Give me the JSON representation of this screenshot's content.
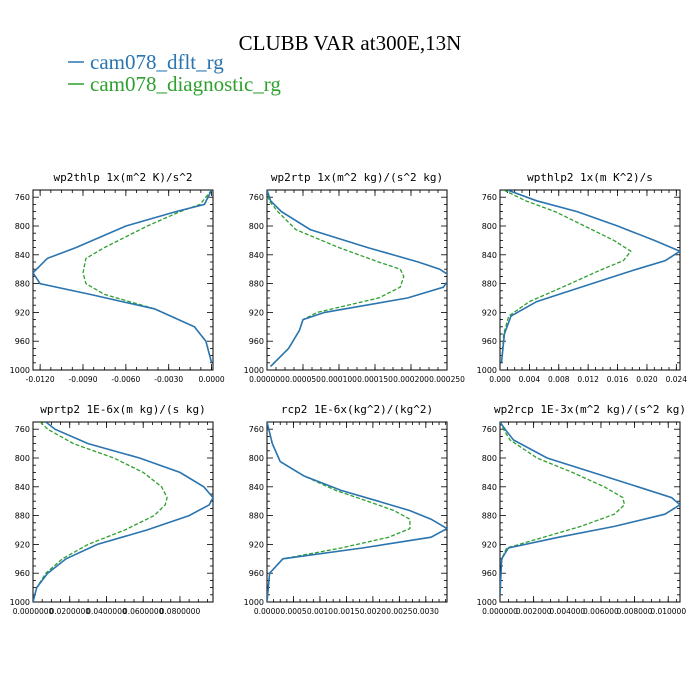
{
  "title": "CLUBB VAR at300E,13N",
  "legend": [
    {
      "label": "cam078_dflt_rg",
      "color": "#2a74b0",
      "style": "solid"
    },
    {
      "label": "cam078_diagnostic_rg",
      "color": "#2ea02e",
      "style": "dashed"
    }
  ],
  "chart_data": [
    {
      "type": "line",
      "title": "wp2thlp   1x(m^2 K)/s^2",
      "ylim": [
        1000,
        750
      ],
      "xlim": [
        -0.0125,
        0.0001
      ],
      "yticks": [
        "760",
        "800",
        "840",
        "880",
        "920",
        "960",
        "1000"
      ],
      "xticks": [
        "-0.0120",
        "-0.0090",
        "-0.0060",
        "-0.0030",
        "0.0000"
      ],
      "series": [
        {
          "x": [
            0.0,
            -0.0005,
            -0.0025,
            -0.006,
            -0.0095,
            -0.0115,
            -0.0125,
            -0.012,
            -0.0085,
            -0.004,
            -0.0012,
            -0.0004,
            0.0
          ],
          "y": [
            750,
            770,
            780,
            800,
            830,
            845,
            865,
            880,
            895,
            915,
            940,
            960,
            990
          ]
        },
        {
          "x": [
            0.0,
            -0.0008,
            -0.0022,
            -0.0045,
            -0.0075,
            -0.0088,
            -0.009,
            -0.0088,
            -0.0075,
            -0.004,
            -0.0012,
            -0.0004,
            0.0
          ],
          "y": [
            750,
            770,
            780,
            800,
            830,
            845,
            865,
            880,
            895,
            915,
            940,
            960,
            990
          ]
        }
      ]
    },
    {
      "type": "line",
      "title": "wp2rtp   1x(m^2 kg)/(s^2 kg)",
      "ylim": [
        1000,
        750
      ],
      "xlim": [
        0,
        0.00025
      ],
      "yticks": [
        "760",
        "800",
        "840",
        "880",
        "920",
        "960",
        "1000"
      ],
      "xticks": [
        "0.000000",
        "0.000050",
        "0.000100",
        "0.000150",
        "0.000200",
        "0.000250"
      ],
      "series": [
        {
          "x": [
            0.0,
            5e-06,
            2e-05,
            6e-05,
            0.00014,
            0.00021,
            0.00024,
            0.000255,
            0.000245,
            0.000195,
            8e-05,
            5e-05,
            4.5e-05,
            3e-05,
            5e-06
          ],
          "y": [
            750,
            765,
            780,
            805,
            830,
            850,
            860,
            870,
            885,
            900,
            920,
            930,
            945,
            970,
            995
          ]
        },
        {
          "x": [
            0.0,
            3e-06,
            1.5e-05,
            4e-05,
            0.0001,
            0.000155,
            0.000185,
            0.00019,
            0.000185,
            0.000155,
            7e-05,
            5e-05,
            4.5e-05,
            3e-05,
            5e-06
          ],
          "y": [
            750,
            765,
            780,
            805,
            830,
            850,
            860,
            870,
            885,
            900,
            920,
            930,
            945,
            970,
            995
          ]
        }
      ]
    },
    {
      "type": "line",
      "title": "wpthlp2   1x(m K^2)/s",
      "ylim": [
        1000,
        750
      ],
      "xlim": [
        0,
        0.0245
      ],
      "yticks": [
        "760",
        "800",
        "840",
        "880",
        "920",
        "960",
        "1000"
      ],
      "xticks": [
        "0.000",
        "0.004",
        "0.008",
        "0.012",
        "0.016",
        "0.020",
        "0.024"
      ],
      "series": [
        {
          "x": [
            0.001,
            0.005,
            0.0105,
            0.016,
            0.021,
            0.0245,
            0.0225,
            0.018,
            0.011,
            0.005,
            0.0015,
            0.0006,
            0.0002
          ],
          "y": [
            750,
            765,
            780,
            800,
            820,
            835,
            848,
            862,
            885,
            905,
            925,
            950,
            990
          ]
        },
        {
          "x": [
            0.0005,
            0.0035,
            0.0075,
            0.0115,
            0.0155,
            0.0178,
            0.0168,
            0.0135,
            0.0085,
            0.004,
            0.0012,
            0.0005,
            0.0002
          ],
          "y": [
            750,
            765,
            780,
            800,
            820,
            835,
            848,
            862,
            885,
            905,
            925,
            950,
            990
          ]
        }
      ]
    },
    {
      "type": "line",
      "title": "wprtp2   1E-6x(m kg)/(s kg)",
      "ylim": [
        1000,
        750
      ],
      "xlim": [
        0,
        0.098
      ],
      "yticks": [
        "760",
        "800",
        "840",
        "880",
        "920",
        "960",
        "1000"
      ],
      "xticks": [
        "0.0000000",
        "0.0200000",
        "0.0400000",
        "0.0600000",
        "0.0800000"
      ],
      "series": [
        {
          "x": [
            0.007,
            0.012,
            0.03,
            0.058,
            0.08,
            0.093,
            0.098,
            0.096,
            0.085,
            0.062,
            0.035,
            0.018,
            0.008,
            0.002,
            0.0
          ],
          "y": [
            750,
            760,
            780,
            800,
            820,
            840,
            855,
            865,
            880,
            900,
            920,
            940,
            960,
            980,
            1000
          ]
        },
        {
          "x": [
            0.004,
            0.008,
            0.022,
            0.044,
            0.06,
            0.07,
            0.073,
            0.072,
            0.066,
            0.05,
            0.03,
            0.016,
            0.007,
            0.002,
            0.0
          ],
          "y": [
            750,
            760,
            780,
            800,
            820,
            840,
            855,
            865,
            880,
            900,
            920,
            940,
            960,
            980,
            1000
          ]
        }
      ]
    },
    {
      "type": "line",
      "title": "rcp2   1E-6x(kg^2)/(kg^2)",
      "ylim": [
        1000,
        750
      ],
      "xlim": [
        0,
        0.0034
      ],
      "yticks": [
        "760",
        "800",
        "840",
        "880",
        "920",
        "960",
        "1000"
      ],
      "xticks": [
        "0.0000",
        "0.0005",
        "0.0010",
        "0.0015",
        "0.0020",
        "0.0025",
        "0.0030"
      ],
      "series": [
        {
          "x": [
            0.0,
            0.0001,
            0.00025,
            0.0007,
            0.0014,
            0.0021,
            0.0027,
            0.0031,
            0.0034,
            0.0031,
            0.0018,
            0.0003,
            5e-05,
            0.0
          ],
          "y": [
            750,
            780,
            805,
            825,
            845,
            860,
            873,
            885,
            898,
            910,
            925,
            940,
            960,
            1000
          ]
        },
        {
          "x": [
            0.0,
            0.0001,
            0.00025,
            0.0007,
            0.0013,
            0.0019,
            0.0024,
            0.0027,
            0.0027,
            0.0023,
            0.0014,
            0.0003,
            5e-05,
            0.0
          ],
          "y": [
            750,
            780,
            805,
            825,
            845,
            860,
            873,
            885,
            898,
            910,
            925,
            940,
            960,
            1000
          ]
        }
      ]
    },
    {
      "type": "line",
      "title": "wp2rcp   1E-3x(m^2 kg)/(s^2 kg)",
      "ylim": [
        1000,
        750
      ],
      "xlim": [
        0,
        0.0107
      ],
      "yticks": [
        "760",
        "800",
        "840",
        "880",
        "920",
        "960",
        "1000"
      ],
      "xticks": [
        "0.000000",
        "0.002000",
        "0.004000",
        "0.006000",
        "0.008000",
        "0.010000"
      ],
      "series": [
        {
          "x": [
            0.0,
            0.0003,
            0.0008,
            0.0028,
            0.0055,
            0.0082,
            0.0102,
            0.0107,
            0.0098,
            0.0068,
            0.0035,
            0.0005,
            0.0001,
            0.0
          ],
          "y": [
            750,
            760,
            775,
            800,
            820,
            840,
            855,
            865,
            878,
            895,
            910,
            925,
            940,
            990
          ]
        },
        {
          "x": [
            0.0,
            0.0002,
            0.0006,
            0.0022,
            0.0043,
            0.0062,
            0.0073,
            0.0074,
            0.0068,
            0.0048,
            0.0026,
            0.0004,
            0.0001,
            0.0
          ],
          "y": [
            750,
            760,
            775,
            800,
            820,
            840,
            855,
            865,
            878,
            895,
            910,
            925,
            940,
            990
          ]
        }
      ]
    }
  ]
}
